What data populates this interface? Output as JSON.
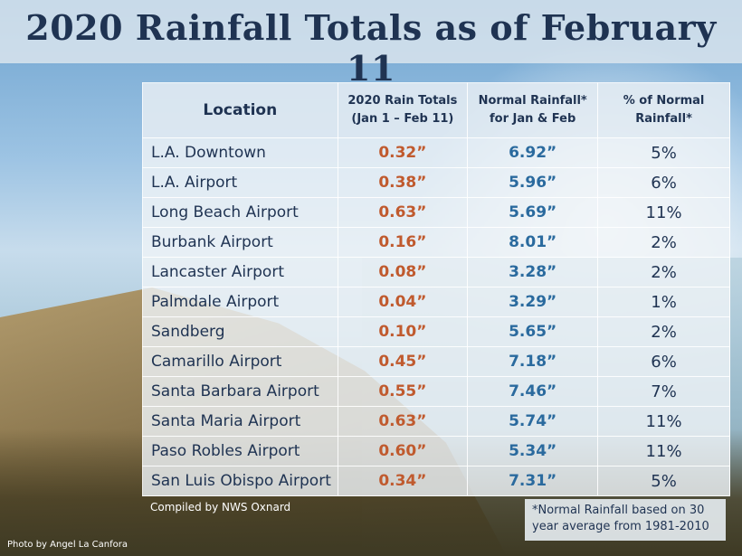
{
  "title": "2020 Rainfall Totals as of February 11",
  "headers": {
    "location": "Location",
    "rain_line1": "2020 Rain Totals",
    "rain_line2": "(Jan 1 – Feb 11)",
    "normal_line1": "Normal Rainfall*",
    "normal_line2": "for Jan & Feb",
    "pct_line1": "% of Normal",
    "pct_line2": "Rainfall*"
  },
  "colors": {
    "rain": "#c05a2e",
    "normal": "#2a6a9e",
    "text": "#1f3352"
  },
  "chart_data": {
    "type": "table",
    "title": "2020 Rainfall Totals as of February 11",
    "columns": [
      "Location",
      "2020 Rain Totals (Jan 1 – Feb 11)",
      "Normal Rainfall* for Jan & Feb",
      "% of Normal Rainfall*"
    ],
    "rows": [
      {
        "location": "L.A. Downtown",
        "rain": "0.32”",
        "normal": "6.92”",
        "pct": "5%"
      },
      {
        "location": "L.A. Airport",
        "rain": "0.38”",
        "normal": "5.96”",
        "pct": "6%"
      },
      {
        "location": "Long Beach Airport",
        "rain": "0.63”",
        "normal": "5.69”",
        "pct": "11%"
      },
      {
        "location": "Burbank Airport",
        "rain": "0.16”",
        "normal": "8.01”",
        "pct": "2%"
      },
      {
        "location": "Lancaster Airport",
        "rain": "0.08”",
        "normal": "3.28”",
        "pct": "2%"
      },
      {
        "location": "Palmdale Airport",
        "rain": "0.04”",
        "normal": "3.29”",
        "pct": "1%"
      },
      {
        "location": "Sandberg",
        "rain": "0.10”",
        "normal": "5.65”",
        "pct": "2%"
      },
      {
        "location": "Camarillo Airport",
        "rain": "0.45”",
        "normal": "7.18”",
        "pct": "6%"
      },
      {
        "location": "Santa Barbara Airport",
        "rain": "0.55”",
        "normal": "7.46”",
        "pct": "7%"
      },
      {
        "location": "Santa Maria Airport",
        "rain": "0.63”",
        "normal": "5.74”",
        "pct": "11%"
      },
      {
        "location": "Paso Robles Airport",
        "rain": "0.60”",
        "normal": "5.34”",
        "pct": "11%"
      },
      {
        "location": "San Luis Obispo Airport",
        "rain": "0.34”",
        "normal": "7.31”",
        "pct": "5%"
      }
    ]
  },
  "compiled_by": "Compiled by NWS Oxnard",
  "photo_credit": "Photo by Angel La Canfora",
  "footnote_line1": "*Normal Rainfall based on 30",
  "footnote_line2": "year average from 1981-2010"
}
